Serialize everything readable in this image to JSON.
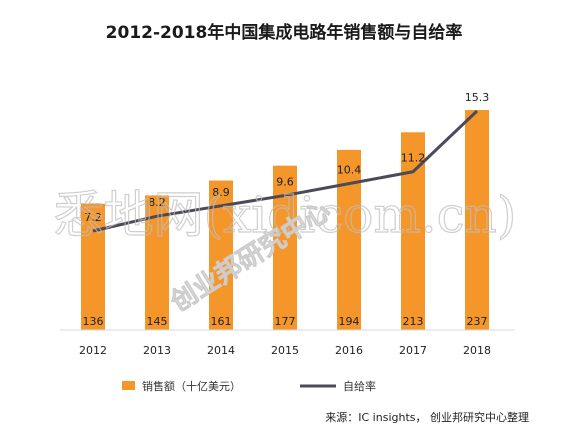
{
  "chart_data": {
    "type": "bar",
    "title": "2012-2018年中国集成电路年销售额与自给率",
    "categories": [
      "2012",
      "2013",
      "2014",
      "2015",
      "2016",
      "2017",
      "2018"
    ],
    "series": [
      {
        "name": "销售额（十亿美元）",
        "type": "bar",
        "color": "#F5962A",
        "values": [
          136,
          145,
          161,
          177,
          194,
          213,
          237
        ],
        "labels": [
          "136",
          "145",
          "161",
          "177",
          "194",
          "213",
          "237"
        ]
      },
      {
        "name": "自给率",
        "type": "line",
        "color": "#4A4A5A",
        "values": [
          7.2,
          8.2,
          8.9,
          9.6,
          10.4,
          11.2,
          15.3
        ],
        "labels": [
          "7.2",
          "8.2",
          "8.9",
          "9.6",
          "10.4",
          "11.2",
          "15.3"
        ]
      }
    ],
    "legend_position": "bottom",
    "grid": false
  },
  "source": "来源：IC insights， 创业邦研究中心整理",
  "watermark": {
    "text_main": "悉地网(xidicom.cn)",
    "text_secondary": "创业邦研究中心"
  }
}
